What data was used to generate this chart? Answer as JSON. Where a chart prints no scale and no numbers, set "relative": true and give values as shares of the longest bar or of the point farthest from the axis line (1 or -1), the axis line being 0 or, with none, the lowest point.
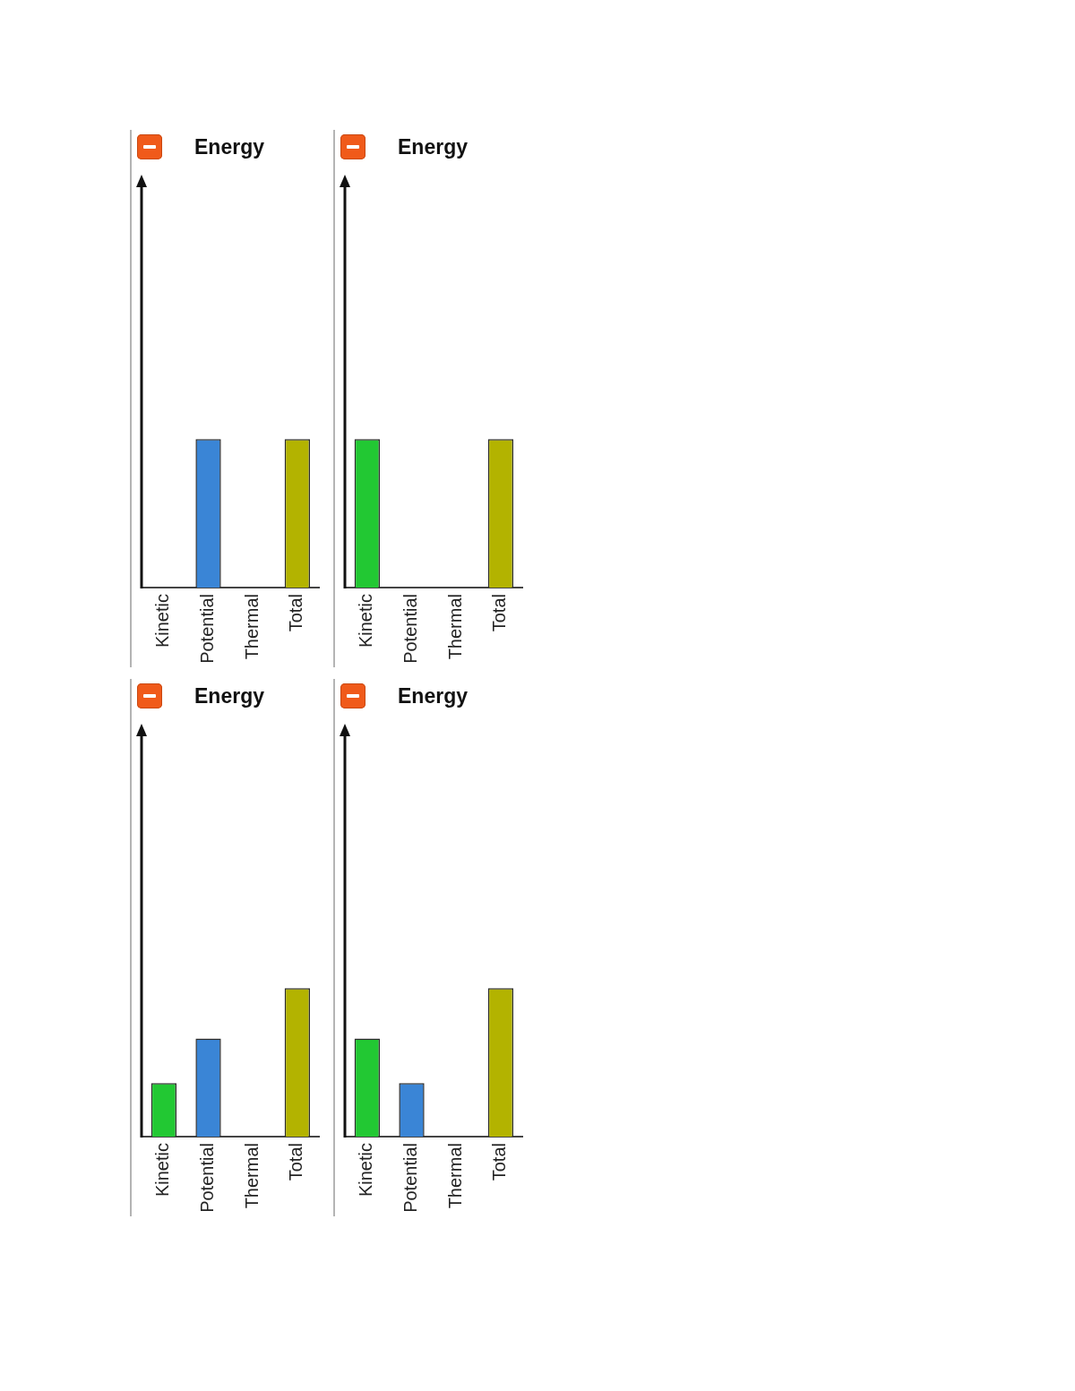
{
  "chart_data": [
    {
      "type": "bar",
      "title": "Energy",
      "categories": [
        "Kinetic",
        "Potential",
        "Thermal",
        "Total"
      ],
      "values": [
        0,
        1,
        0,
        1
      ],
      "colors": [
        "#22c833",
        "#3a85d6",
        null,
        "#b3b300"
      ],
      "relative": true
    },
    {
      "type": "bar",
      "title": "Energy",
      "categories": [
        "Kinetic",
        "Potential",
        "Thermal",
        "Total"
      ],
      "values": [
        1,
        0,
        0,
        1
      ],
      "colors": [
        "#22c833",
        "#3a85d6",
        null,
        "#b3b300"
      ],
      "relative": true
    },
    {
      "type": "bar",
      "title": "Energy",
      "categories": [
        "Kinetic",
        "Potential",
        "Thermal",
        "Total"
      ],
      "values": [
        0.36,
        0.66,
        0,
        1
      ],
      "colors": [
        "#22c833",
        "#3a85d6",
        null,
        "#b3b300"
      ],
      "relative": true
    },
    {
      "type": "bar",
      "title": "Energy",
      "categories": [
        "Kinetic",
        "Potential",
        "Thermal",
        "Total"
      ],
      "values": [
        0.66,
        0.36,
        0,
        1
      ],
      "colors": [
        "#22c833",
        "#3a85d6",
        null,
        "#b3b300"
      ],
      "relative": true
    }
  ]
}
